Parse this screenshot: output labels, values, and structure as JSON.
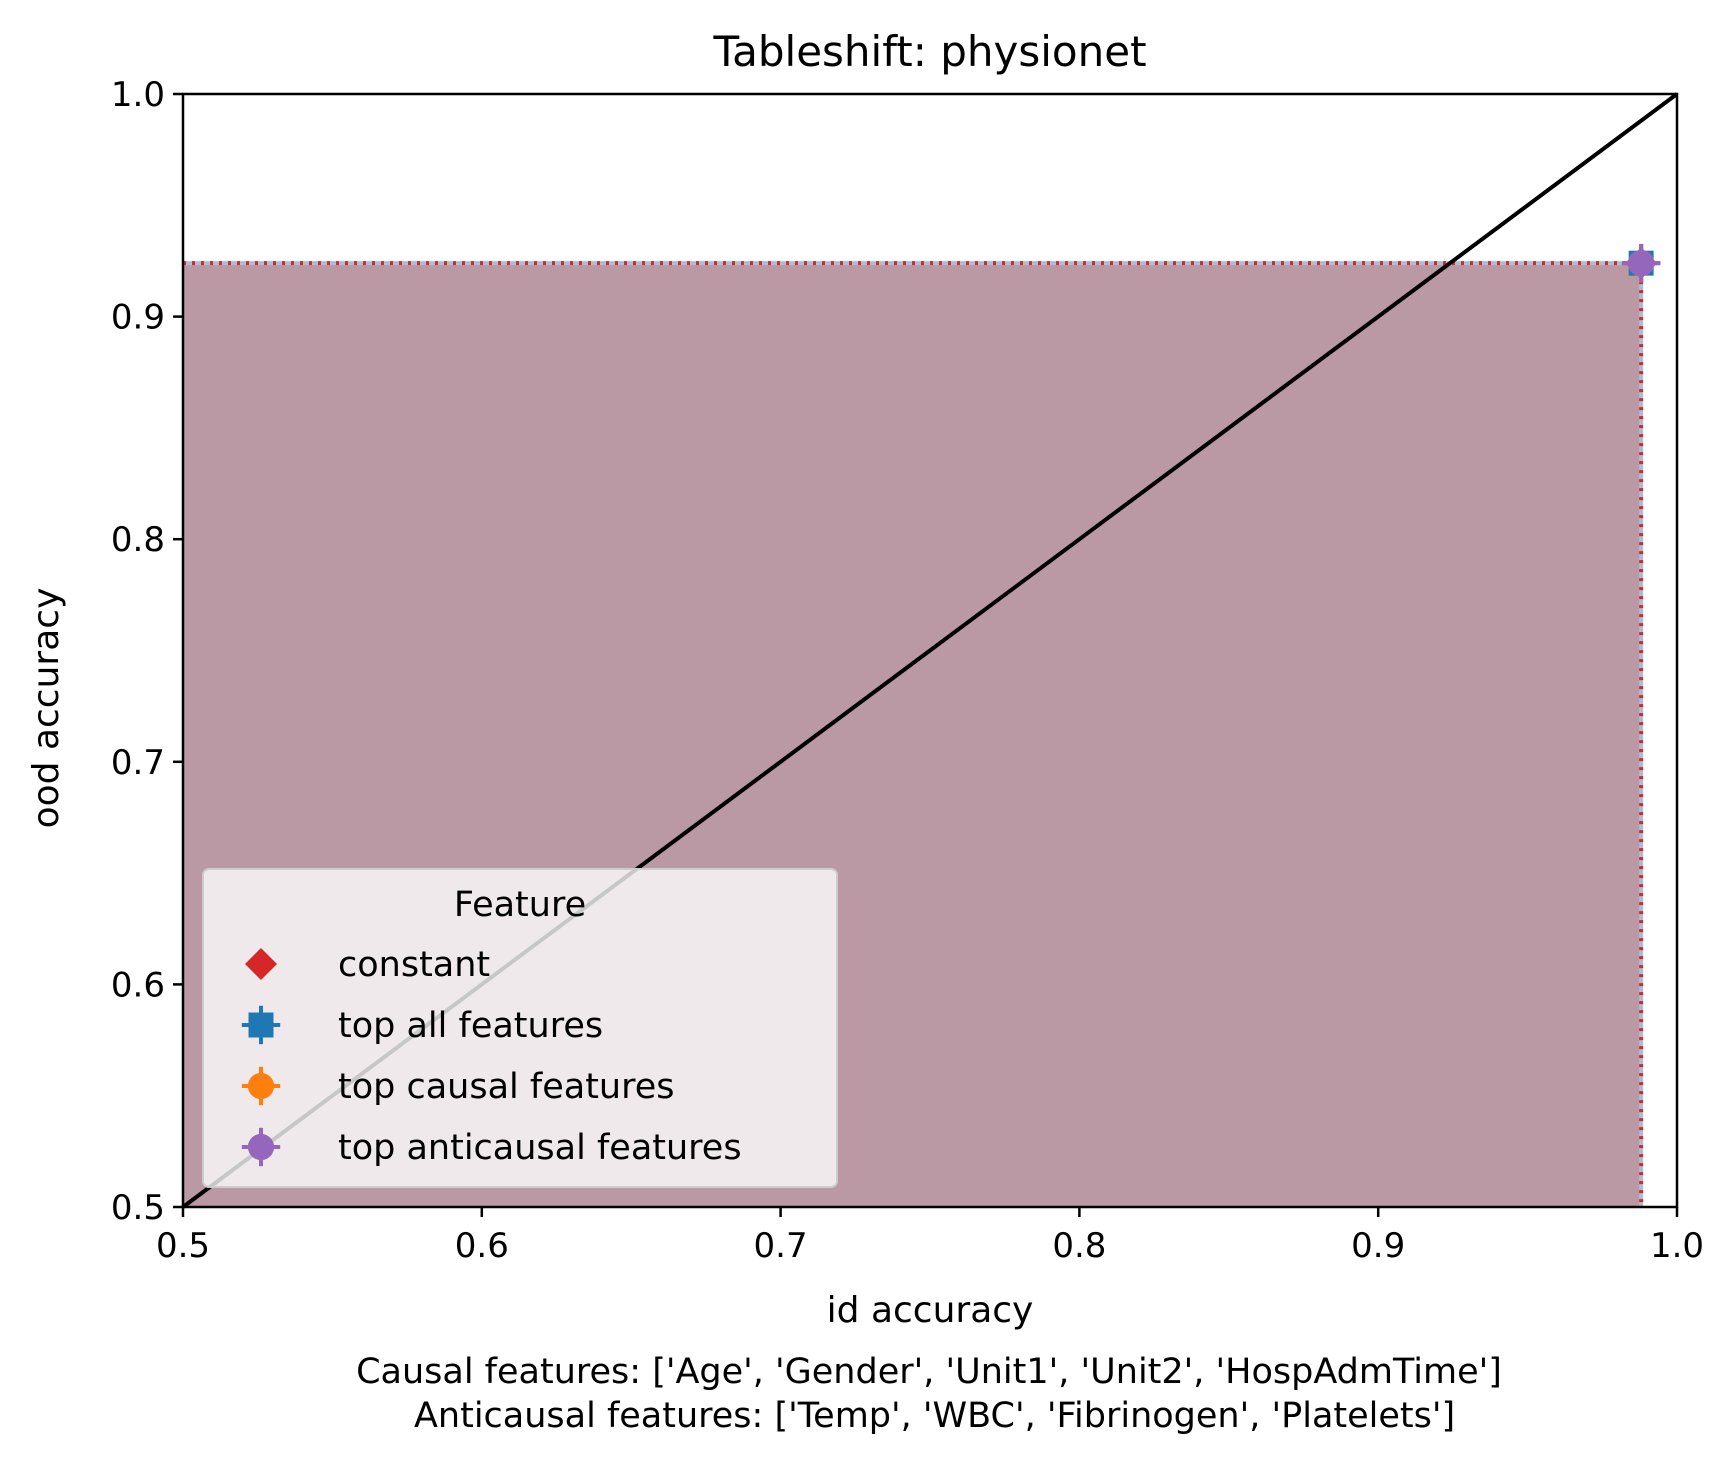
{
  "chart_data": {
    "type": "scatter",
    "title": "Tableshift: physionet",
    "xlabel": "id accuracy",
    "ylabel": "ood accuracy",
    "xlim": [
      0.5,
      1.0
    ],
    "ylim": [
      0.5,
      1.0
    ],
    "xticks": [
      "0.5",
      "0.6",
      "0.7",
      "0.8",
      "0.9",
      "1.0"
    ],
    "yticks": [
      "0.5",
      "0.6",
      "0.7",
      "0.8",
      "0.9",
      "1.0"
    ],
    "grid": false,
    "diagonal_reference_line": true,
    "shaded_region": {
      "x_max": 0.988,
      "y_max": 0.924,
      "color": "#bb99a4"
    },
    "series": [
      {
        "name": "constant",
        "marker": "diamond",
        "color": "#d62728",
        "x": 0.988,
        "y": 0.924
      },
      {
        "name": "top all features",
        "marker": "square",
        "color": "#1f77b4",
        "x": 0.988,
        "y": 0.924
      },
      {
        "name": "top causal features",
        "marker": "circle",
        "color": "#ff7f0e",
        "x": 0.988,
        "y": 0.924
      },
      {
        "name": "top anticausal features",
        "marker": "circle",
        "color": "#9467bd",
        "x": 0.988,
        "y": 0.924
      }
    ],
    "legend": {
      "title": "Feature",
      "placement": "lower-left"
    },
    "caption_lines": [
      "Causal features: ['Age', 'Gender', 'Unit1', 'Unit2', 'HospAdmTime']",
      " Anticausal features: ['Temp', 'WBC', 'Fibrinogen', 'Platelets']"
    ]
  }
}
